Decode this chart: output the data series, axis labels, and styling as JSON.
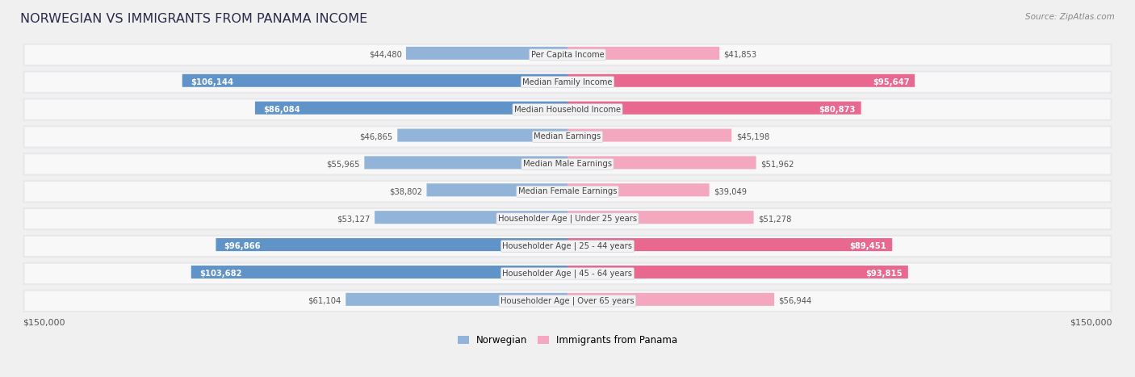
{
  "title": "NORWEGIAN VS IMMIGRANTS FROM PANAMA INCOME",
  "source": "Source: ZipAtlas.com",
  "categories": [
    "Per Capita Income",
    "Median Family Income",
    "Median Household Income",
    "Median Earnings",
    "Median Male Earnings",
    "Median Female Earnings",
    "Householder Age | Under 25 years",
    "Householder Age | 25 - 44 years",
    "Householder Age | 45 - 64 years",
    "Householder Age | Over 65 years"
  ],
  "norwegian_values": [
    44480,
    106144,
    86084,
    46865,
    55965,
    38802,
    53127,
    96866,
    103682,
    61104
  ],
  "panama_values": [
    41853,
    95647,
    80873,
    45198,
    51962,
    39049,
    51278,
    89451,
    93815,
    56944
  ],
  "max_val": 150000,
  "norwegian_color": "#93b4d9",
  "norwegian_color_highlight": "#6093c8",
  "panama_color": "#f4a8bf",
  "panama_color_highlight": "#e96890",
  "background_color": "#f0f0f0",
  "row_bg_color": "#e8e8ec",
  "row_inner_color": "#f8f8f8",
  "label_bg_color": "#f2f2f4",
  "highlight_threshold": 80000,
  "norwegian_label": "Norwegian",
  "panama_label": "Immigrants from Panama",
  "title_color": "#2a2a4a",
  "source_color": "#888888",
  "value_color_dark": "#555555",
  "value_color_light": "#ffffff"
}
